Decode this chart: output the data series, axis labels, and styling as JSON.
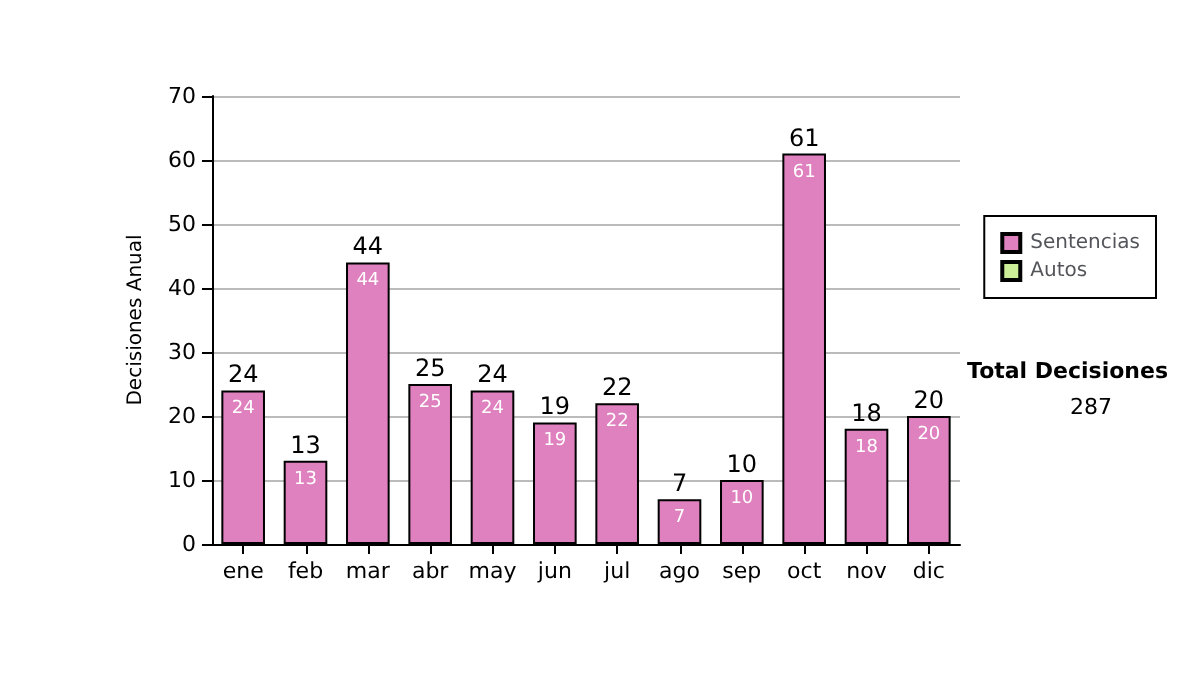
{
  "chart_data": {
    "type": "bar",
    "ylabel": "Decisiones Anual",
    "categories": [
      "ene",
      "feb",
      "mar",
      "abr",
      "may",
      "jun",
      "jul",
      "ago",
      "sep",
      "oct",
      "nov",
      "dic"
    ],
    "series": [
      {
        "name": "Sentencias",
        "color": "#df80bf",
        "values": [
          24,
          13,
          44,
          25,
          24,
          19,
          22,
          7,
          10,
          61,
          18,
          20
        ]
      },
      {
        "name": "Autos",
        "color": "#ccee99",
        "values": [
          null,
          null,
          null,
          null,
          null,
          null,
          null,
          null,
          null,
          null,
          null,
          null
        ]
      }
    ],
    "stacked": true,
    "data_labels": true,
    "totals": [
      "24",
      "13",
      "44",
      "25",
      "24",
      "19",
      "22",
      "7",
      "10",
      "61",
      "18",
      "20"
    ],
    "ylim": [
      0,
      70
    ],
    "yticks": [
      0,
      10,
      20,
      30,
      40,
      50,
      60,
      70
    ],
    "grid": "y",
    "legend": "right",
    "annotations": [
      "Total Decisiones",
      "287"
    ]
  }
}
